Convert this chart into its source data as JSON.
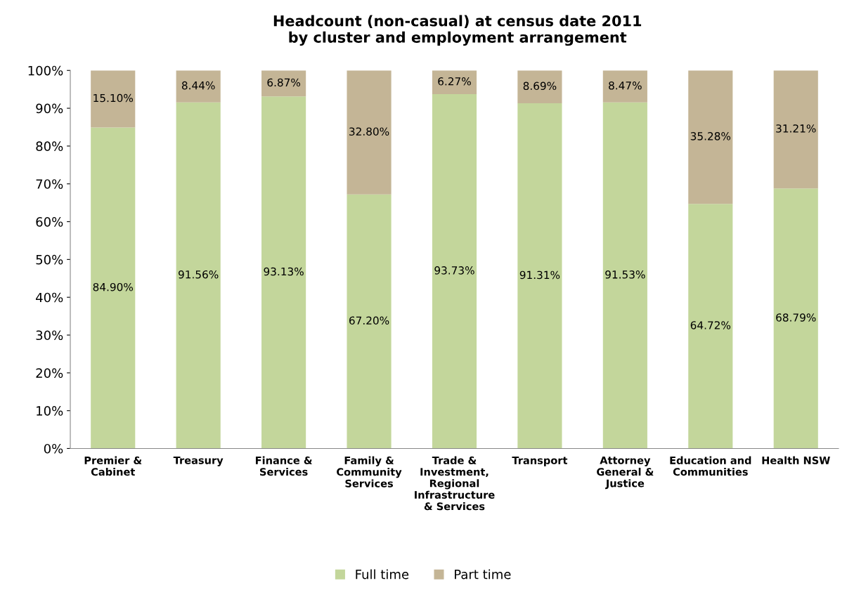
{
  "chart_data": {
    "type": "bar",
    "stacked": true,
    "title": "Headcount (non-casual) at census date 2011\nby cluster and employment arrangement",
    "categories": [
      "Premier &\nCabinet",
      "Treasury",
      "Finance &\nServices",
      "Family &\nCommunity\nServices",
      "Trade &\nInvestment,\nRegional\nInfrastructure\n& Services",
      "Transport",
      "Attorney\nGeneral &\nJustice",
      "Education and\nCommunities",
      "Health NSW"
    ],
    "series": [
      {
        "name": "Full time",
        "color": "#c3d69b",
        "values": [
          84.9,
          91.56,
          93.13,
          67.2,
          93.73,
          91.31,
          91.53,
          64.72,
          68.79
        ],
        "value_labels": [
          "84.90%",
          "91.56%",
          "93.13%",
          "67.20%",
          "93.73%",
          "91.31%",
          "91.53%",
          "64.72%",
          "68.79%"
        ]
      },
      {
        "name": "Part time",
        "color": "#c4b596",
        "values": [
          15.1,
          8.44,
          6.87,
          32.8,
          6.27,
          8.69,
          8.47,
          35.28,
          31.21
        ],
        "value_labels": [
          "15.10%",
          "8.44%",
          "6.87%",
          "32.80%",
          "6.27%",
          "8.69%",
          "8.47%",
          "35.28%",
          "31.21%"
        ]
      }
    ],
    "ylim": [
      0,
      100
    ],
    "yticks": [
      {
        "value": 0,
        "label": "0%"
      },
      {
        "value": 10,
        "label": "10%"
      },
      {
        "value": 20,
        "label": "20%"
      },
      {
        "value": 30,
        "label": "30%"
      },
      {
        "value": 40,
        "label": "40%"
      },
      {
        "value": 50,
        "label": "50%"
      },
      {
        "value": 60,
        "label": "60%"
      },
      {
        "value": 70,
        "label": "70%"
      },
      {
        "value": 80,
        "label": "80%"
      },
      {
        "value": 90,
        "label": "90%"
      },
      {
        "value": 100,
        "label": "100%"
      }
    ],
    "grid": false,
    "legend": "bottom"
  }
}
